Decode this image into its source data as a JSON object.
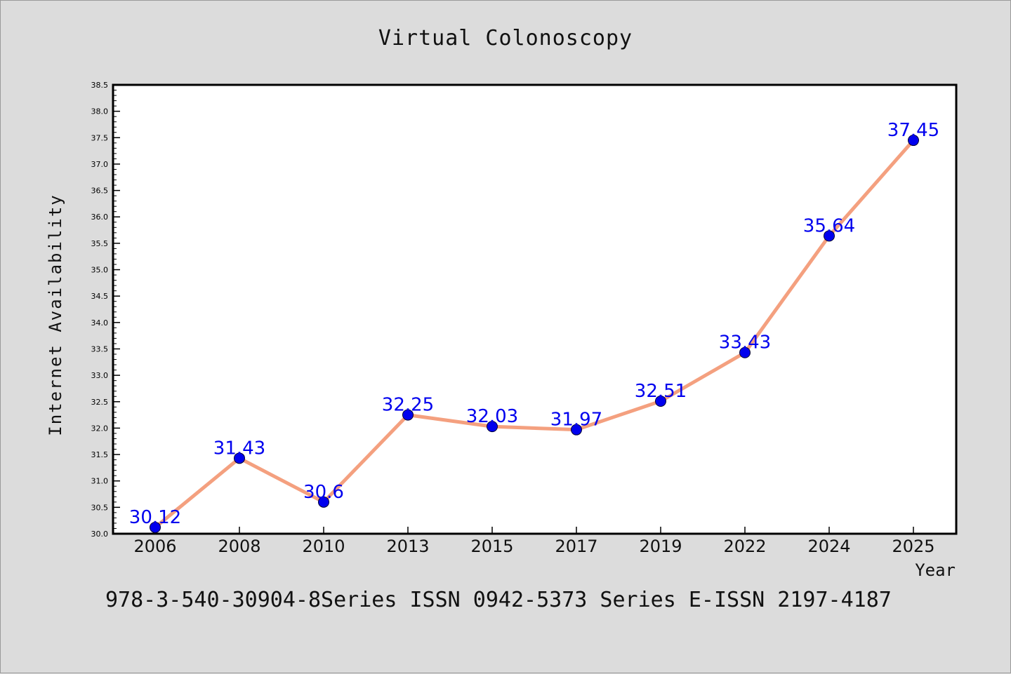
{
  "chart_data": {
    "type": "line",
    "title": "Virtual Colonoscopy",
    "xlabel": "Year",
    "ylabel": "Internet Availability",
    "categories": [
      "2006",
      "2008",
      "2010",
      "2013",
      "2015",
      "2017",
      "2019",
      "2022",
      "2024",
      "2025"
    ],
    "series": [
      {
        "values": [
          30.12,
          31.43,
          30.6,
          32.25,
          32.03,
          31.97,
          32.51,
          33.43,
          35.64,
          37.45
        ],
        "labels": [
          "30.12",
          "31.43",
          "30.6",
          "32.25",
          "32.03",
          "31.97",
          "32.51",
          "33.43",
          "35.64",
          "37.45"
        ]
      }
    ],
    "yticks": [
      "30.0",
      "30.5",
      "31.0",
      "31.5",
      "32.0",
      "32.5",
      "33.0",
      "33.5",
      "34.0",
      "34.5",
      "35.0",
      "35.5",
      "36.0",
      "36.5",
      "37.0",
      "37.5",
      "38.0",
      "38.5"
    ],
    "ylim": [
      30.0,
      38.5
    ],
    "grid": false,
    "legend": "none",
    "colors": {
      "line": "#f4a07f",
      "marker": "#0000ee",
      "data_label": "#0000ee",
      "background": "#dcdcdc",
      "plot_area": "#ffffff"
    }
  },
  "footer_text": "978-3-540-30904-8Series ISSN 0942-5373 Series E-ISSN 2197-4187"
}
